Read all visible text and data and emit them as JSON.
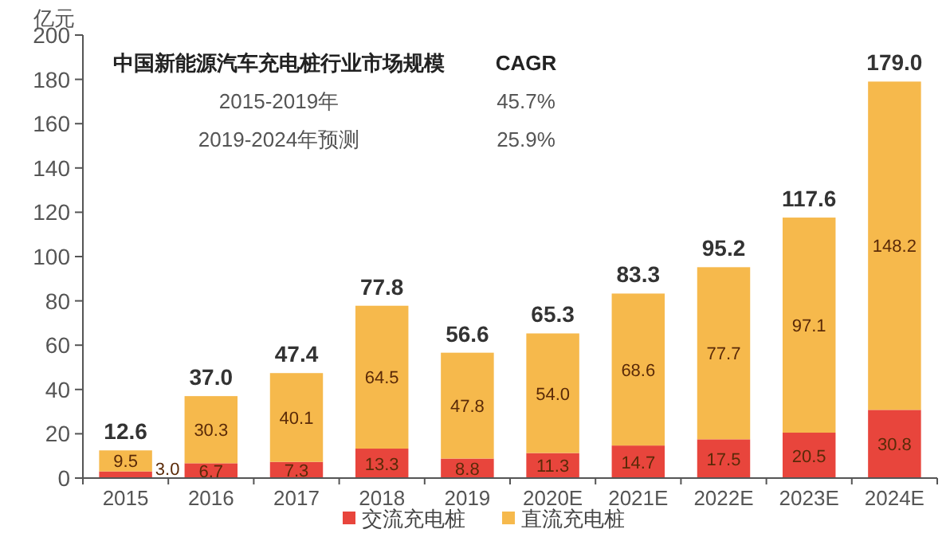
{
  "chart_data": {
    "type": "bar",
    "stacked": true,
    "ylabel": "亿元",
    "categories": [
      "2015",
      "2016",
      "2017",
      "2018",
      "2019",
      "2020E",
      "2021E",
      "2022E",
      "2023E",
      "2024E"
    ],
    "series": [
      {
        "name": "交流充电桩",
        "color": "#e8453c",
        "values": [
          3.0,
          6.7,
          7.3,
          13.3,
          8.8,
          11.3,
          14.7,
          17.5,
          20.5,
          30.8
        ],
        "value_labels": [
          "3.0",
          "6.7",
          "7.3",
          "13.3",
          "8.8",
          "11.3",
          "14.7",
          "17.5",
          "20.5",
          "30.8"
        ]
      },
      {
        "name": "直流充电桩",
        "color": "#f6b94c",
        "values": [
          9.5,
          30.3,
          40.1,
          64.5,
          47.8,
          54.0,
          68.6,
          77.7,
          97.1,
          148.2
        ],
        "value_labels": [
          "9.5",
          "30.3",
          "40.1",
          "64.5",
          "47.8",
          "54.0",
          "68.6",
          "77.7",
          "97.1",
          "148.2"
        ]
      }
    ],
    "totals": [
      "12.6",
      "37.0",
      "47.4",
      "77.8",
      "56.6",
      "65.3",
      "83.3",
      "95.2",
      "117.6",
      "179.0"
    ],
    "ylim": [
      0,
      200
    ],
    "yticks": [
      0,
      20,
      40,
      60,
      80,
      100,
      120,
      140,
      160,
      180,
      200
    ],
    "grid": false,
    "legend": "bottom",
    "annotations": [
      "中国新能源汽车充电桩行业市场规模",
      "CAGR",
      "2015-2019年",
      "45.7%",
      "2019-2024年预测",
      "25.9%"
    ]
  }
}
